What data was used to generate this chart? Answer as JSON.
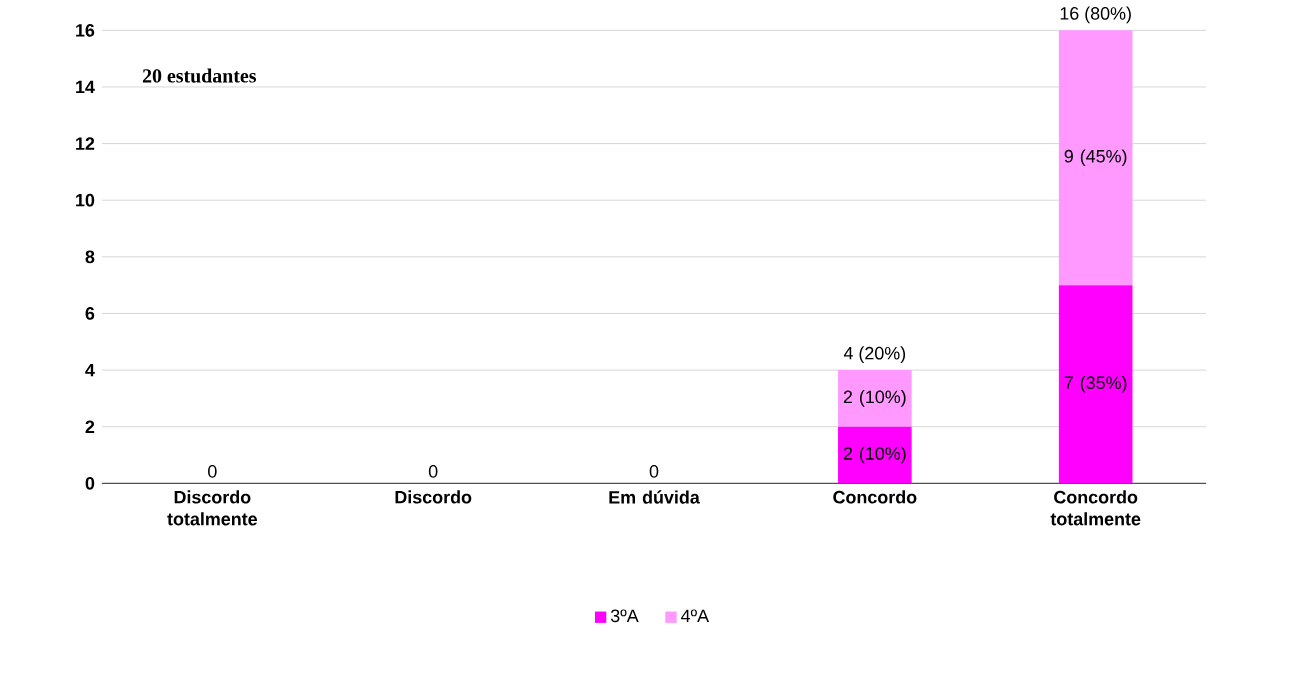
{
  "chart_data": {
    "type": "bar",
    "stacked": true,
    "categories": [
      "Discordo totalmente",
      "Discordo",
      "Em dúvida",
      "Concordo",
      "Concordo totalmente"
    ],
    "series": [
      {
        "name": "3ºA",
        "color": "#ff00ff",
        "values": [
          0,
          0,
          0,
          2,
          7
        ],
        "value_labels": [
          "0",
          "0",
          "0",
          "2 (10%)",
          "7 (35%)"
        ]
      },
      {
        "name": "4ºA",
        "color": "#ff99ff",
        "values": [
          0,
          0,
          0,
          2,
          9
        ],
        "value_labels": [
          null,
          null,
          null,
          "2 (10%)",
          "9 (45%)"
        ]
      }
    ],
    "totals": [
      null,
      null,
      null,
      "4 (20%)",
      "16 (80%)"
    ],
    "ylim": [
      0,
      16
    ],
    "yticks": [
      0,
      2,
      4,
      6,
      8,
      10,
      12,
      14,
      16
    ],
    "grid": "y",
    "legend": "bottom",
    "annotations": [
      "20 estudantes"
    ]
  }
}
